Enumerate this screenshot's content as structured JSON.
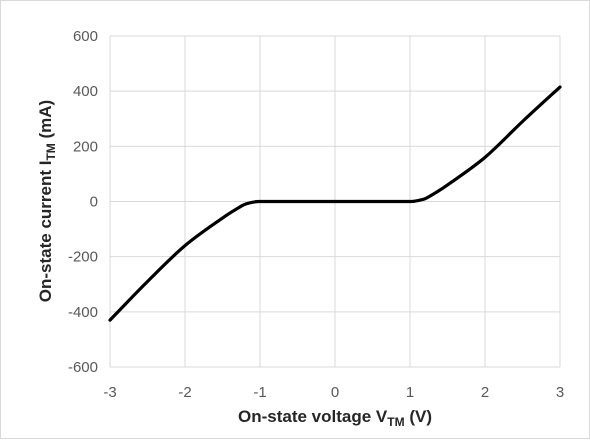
{
  "chart_data": {
    "type": "line",
    "title": "",
    "xlabel": {
      "main": "On-state voltage V",
      "sub": "TM",
      "suffix": " (V)"
    },
    "ylabel": {
      "main": "On-state current I",
      "sub": "TM",
      "suffix": " (mA)"
    },
    "xlim": [
      -3,
      3
    ],
    "ylim": [
      -600,
      600
    ],
    "xticks": [
      -3,
      -2,
      -1,
      0,
      1,
      2,
      3
    ],
    "yticks": [
      -600,
      -400,
      -200,
      0,
      200,
      400,
      600
    ],
    "grid": true,
    "legend": "none",
    "series": [
      {
        "color": "#000000",
        "x": [
          -3,
          -2.5,
          -2,
          -1.5,
          -1.3,
          -1.2,
          -1.1,
          -1.05,
          -1,
          -0.5,
          0,
          0.5,
          1,
          1.05,
          1.1,
          1.2,
          1.3,
          1.5,
          2,
          2.5,
          3
        ],
        "y": [
          -430,
          -290,
          -160,
          -60,
          -25,
          -10,
          -3,
          -1,
          0,
          0,
          0,
          0,
          0,
          1,
          3,
          10,
          25,
          60,
          160,
          290,
          415
        ]
      }
    ]
  }
}
